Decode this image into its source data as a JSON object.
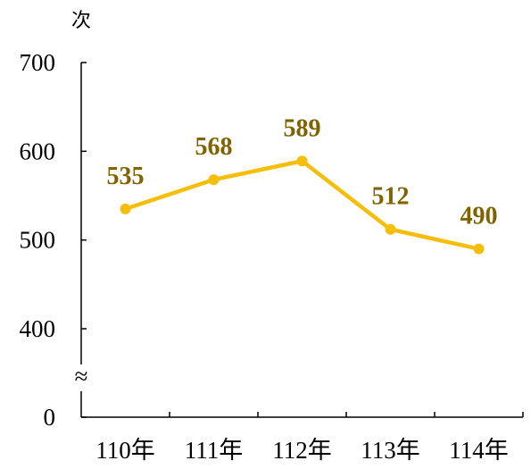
{
  "chart_data": {
    "type": "line",
    "ylabel": "次",
    "categories": [
      "110年",
      "111年",
      "112年",
      "113年",
      "114年"
    ],
    "values": [
      535,
      568,
      589,
      512,
      490
    ],
    "data_labels": [
      "535",
      "568",
      "589",
      "512",
      "490"
    ],
    "y_ticks": [
      "700",
      "600",
      "500",
      "400",
      "0"
    ],
    "y_break_symbol": "≈",
    "ylim": [
      400,
      700
    ],
    "y_axis_break": true,
    "grid": false,
    "legend": "none",
    "colors": {
      "line": "#F5BE0B",
      "label": "#7F6300",
      "axis": "#000000"
    }
  }
}
